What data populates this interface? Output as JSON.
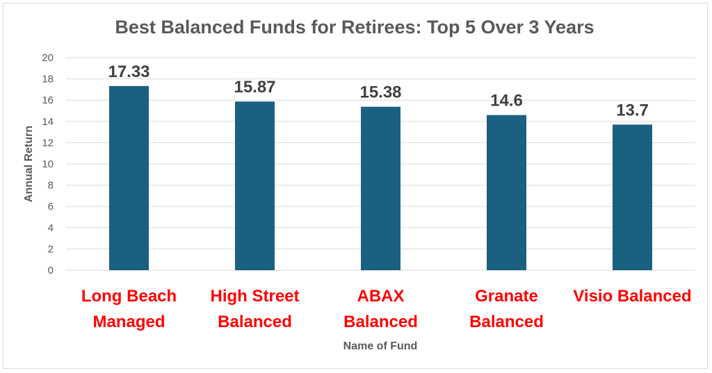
{
  "chart_data": {
    "type": "bar",
    "title": "Best Balanced Funds for Retirees: Top 5 Over 3 Years",
    "xlabel": "Name of Fund",
    "ylabel": "Annual Return",
    "categories": [
      [
        "Long Beach",
        "Managed"
      ],
      [
        "High Street",
        "Balanced"
      ],
      [
        "ABAX",
        "Balanced"
      ],
      [
        "Granate",
        "Balanced"
      ],
      [
        "Visio Balanced"
      ]
    ],
    "values": [
      17.33,
      15.87,
      15.38,
      14.6,
      13.7
    ],
    "data_labels": [
      "17.33",
      "15.87",
      "15.38",
      "14.6",
      "13.7"
    ],
    "ylim": [
      0,
      20
    ],
    "yticks": [
      0,
      2,
      4,
      6,
      8,
      10,
      12,
      14,
      16,
      18,
      20
    ],
    "grid": true,
    "legend": "none",
    "colors": {
      "bar": "#1a6080",
      "category_label": "#ff0000",
      "gridline": "#d9d9d9"
    }
  }
}
